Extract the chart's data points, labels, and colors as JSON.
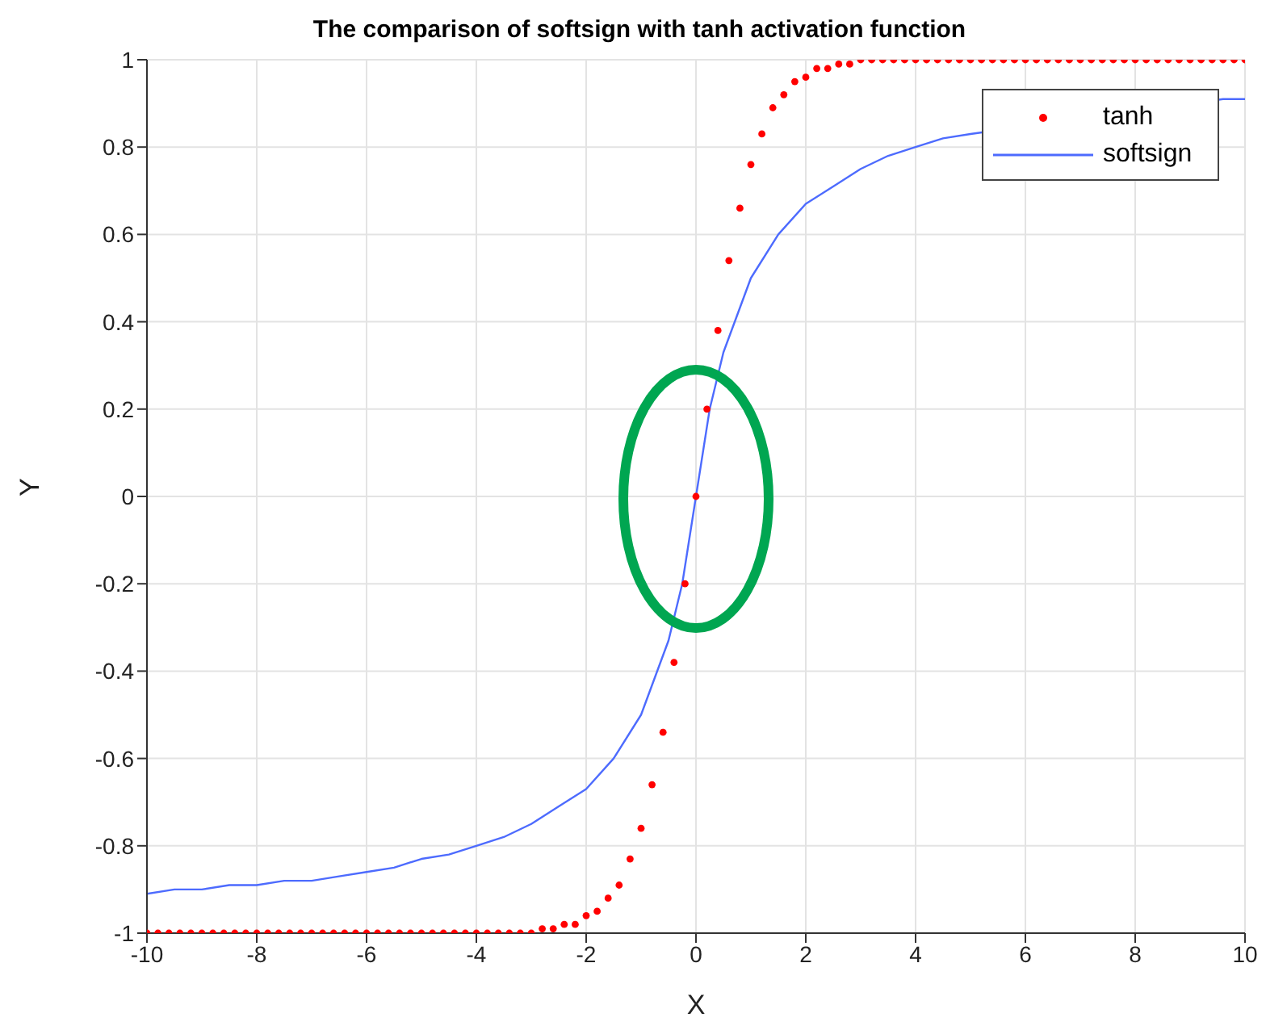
{
  "chart_data": {
    "type": "line",
    "title": "The comparison of softsign with tanh activation function",
    "xlabel": "X",
    "ylabel": "Y",
    "xlim": [
      -10,
      10
    ],
    "xticks": [
      -10,
      -8,
      -6,
      -4,
      -2,
      0,
      2,
      4,
      6,
      8,
      10
    ],
    "ylim": [
      -1,
      1
    ],
    "yticks": [
      -1,
      -0.8,
      -0.6,
      -0.4,
      -0.2,
      0,
      0.2,
      0.4,
      0.6,
      0.8,
      1
    ],
    "grid": true,
    "legend": "top right",
    "series": [
      {
        "name": "tanh",
        "type": "scatter",
        "color": "#ff0000",
        "marker": "circle",
        "x": [
          -10,
          -9.8,
          -9.6,
          -9.4,
          -9.2,
          -9,
          -8.8,
          -8.6,
          -8.4,
          -8.2,
          -8,
          -7.8,
          -7.6,
          -7.4,
          -7.2,
          -7,
          -6.8,
          -6.6,
          -6.4,
          -6.2,
          -6,
          -5.8,
          -5.6,
          -5.4,
          -5.2,
          -5,
          -4.8,
          -4.6,
          -4.4,
          -4.2,
          -4,
          -3.8,
          -3.6,
          -3.4,
          -3.2,
          -3,
          -2.8,
          -2.6,
          -2.4,
          -2.2,
          -2,
          -1.8,
          -1.6,
          -1.4,
          -1.2,
          -1,
          -0.8,
          -0.6,
          -0.4,
          -0.2,
          0,
          0.2,
          0.4,
          0.6,
          0.8,
          1,
          1.2,
          1.4,
          1.6,
          1.8,
          2,
          2.2,
          2.4,
          2.6,
          2.8,
          3,
          3.2,
          3.4,
          3.6,
          3.8,
          4,
          4.2,
          4.4,
          4.6,
          4.8,
          5,
          5.2,
          5.4,
          5.6,
          5.8,
          6,
          6.2,
          6.4,
          6.6,
          6.8,
          7,
          7.2,
          7.4,
          7.6,
          7.8,
          8,
          8.2,
          8.4,
          8.6,
          8.8,
          9,
          9.2,
          9.4,
          9.6,
          9.8,
          10
        ],
        "values": [
          -1,
          -1,
          -1,
          -1,
          -1,
          -1,
          -1,
          -1,
          -1,
          -1,
          -1,
          -1,
          -1,
          -1,
          -1,
          -1,
          -1,
          -1,
          -1,
          -1,
          -1,
          -1,
          -1,
          -1,
          -1,
          -1,
          -1,
          -1,
          -1,
          -1,
          -1,
          -1,
          -1,
          -1,
          -1,
          -1,
          -0.99,
          -0.99,
          -0.98,
          -0.98,
          -0.96,
          -0.95,
          -0.92,
          -0.89,
          -0.83,
          -0.76,
          -0.66,
          -0.54,
          -0.38,
          -0.2,
          0,
          0.2,
          0.38,
          0.54,
          0.66,
          0.76,
          0.83,
          0.89,
          0.92,
          0.95,
          0.96,
          0.98,
          0.98,
          0.99,
          0.99,
          1,
          1,
          1,
          1,
          1,
          1,
          1,
          1,
          1,
          1,
          1,
          1,
          1,
          1,
          1,
          1,
          1,
          1,
          1,
          1,
          1,
          1,
          1,
          1,
          1,
          1,
          1,
          1,
          1,
          1,
          1,
          1,
          1,
          1,
          1,
          1
        ]
      },
      {
        "name": "softsign",
        "color": "#4d6bfe",
        "line_style": "solid",
        "x": [
          -10,
          -9.5,
          -9,
          -8.5,
          -8,
          -7.5,
          -7,
          -6.5,
          -6,
          -5.5,
          -5,
          -4.5,
          -4,
          -3.5,
          -3,
          -2.5,
          -2,
          -1.5,
          -1,
          -0.5,
          -0.25,
          0,
          0.25,
          0.5,
          1,
          1.5,
          2,
          2.5,
          3,
          3.5,
          4,
          4.5,
          5,
          9.6,
          10
        ],
        "values": [
          -0.91,
          -0.9,
          -0.9,
          -0.89,
          -0.89,
          -0.88,
          -0.88,
          -0.87,
          -0.86,
          -0.85,
          -0.83,
          -0.82,
          -0.8,
          -0.78,
          -0.75,
          -0.71,
          -0.67,
          -0.6,
          -0.5,
          -0.33,
          -0.2,
          0,
          0.2,
          0.33,
          0.5,
          0.6,
          0.67,
          0.71,
          0.75,
          0.78,
          0.8,
          0.82,
          0.83,
          0.91,
          0.91
        ]
      }
    ]
  }
}
